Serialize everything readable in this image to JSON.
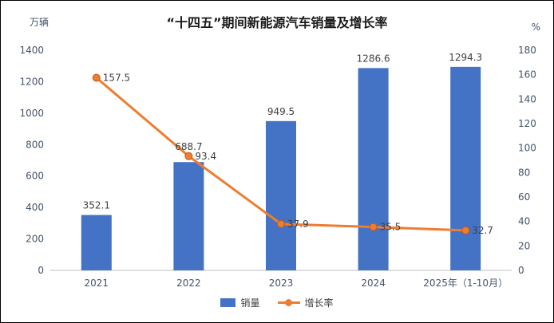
{
  "chart_data": {
    "type": "bar+line",
    "title": "“十四五”期间新能源汽车销量及增长率",
    "categories": [
      "2021",
      "2022",
      "2023",
      "2024",
      "2025年（1-10月）"
    ],
    "series": [
      {
        "name": "销量",
        "type": "bar",
        "axis": "left",
        "color": "#4472C4",
        "values": [
          352.1,
          688.7,
          949.5,
          1286.6,
          1294.3
        ]
      },
      {
        "name": "增长率",
        "type": "line",
        "axis": "right",
        "color": "#ED7D31",
        "marker_edge_color": "#C55A11",
        "values": [
          157.5,
          93.4,
          37.9,
          35.5,
          32.7
        ]
      }
    ],
    "left_axis": {
      "label": "万辆",
      "min": 0,
      "max": 1400,
      "step": 200
    },
    "right_axis": {
      "label": "%",
      "min": 0,
      "max": 180,
      "step": 20
    },
    "grid": false,
    "legend_position": "bottom",
    "axis_line_color": "#BFBFBF"
  }
}
